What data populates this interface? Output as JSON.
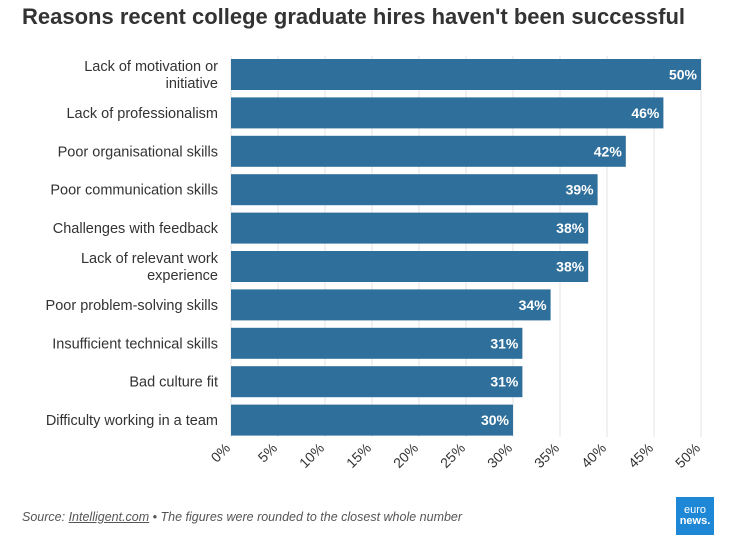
{
  "title": "Reasons recent college graduate hires haven't been successful",
  "source": {
    "prefix": "Source: ",
    "link": "Intelligent.com",
    "suffix": " • The figures were rounded to the closest whole number"
  },
  "logo": {
    "line1": "euro",
    "line2": "news."
  },
  "colors": {
    "bar": "#2f6f9b",
    "grid": "#e3e3e3",
    "text": "#333333",
    "logo": "#1f88d6"
  },
  "chart_data": {
    "type": "bar",
    "orientation": "horizontal",
    "categories": [
      "Lack of motivation or initiative",
      "Lack of professionalism",
      "Poor organisational skills",
      "Poor communication skills",
      "Challenges with feedback",
      "Lack of relevant work experience",
      "Poor problem-solving skills",
      "Insufficient technical skills",
      "Bad culture fit",
      "Difficulty working in a team"
    ],
    "category_label_lines": [
      [
        "Lack of motivation or",
        "initiative"
      ],
      [
        "Lack of professionalism"
      ],
      [
        "Poor organisational skills"
      ],
      [
        "Poor communication skills"
      ],
      [
        "Challenges with feedback"
      ],
      [
        "Lack of relevant work",
        "experience"
      ],
      [
        "Poor problem-solving skills"
      ],
      [
        "Insufficient technical skills"
      ],
      [
        "Bad culture fit"
      ],
      [
        "Difficulty working in a team"
      ]
    ],
    "values": [
      50,
      46,
      42,
      39,
      38,
      38,
      34,
      31,
      31,
      30
    ],
    "data_labels": [
      "50%",
      "46%",
      "42%",
      "39%",
      "38%",
      "38%",
      "34%",
      "31%",
      "31%",
      "30%"
    ],
    "xlim": [
      0,
      50
    ],
    "ticks": [
      0,
      5,
      10,
      15,
      20,
      25,
      30,
      35,
      40,
      45,
      50
    ],
    "tick_labels": [
      "0%",
      "5%",
      "10%",
      "15%",
      "20%",
      "25%",
      "30%",
      "35%",
      "40%",
      "45%",
      "50%"
    ],
    "grid": true,
    "legend": "none"
  }
}
